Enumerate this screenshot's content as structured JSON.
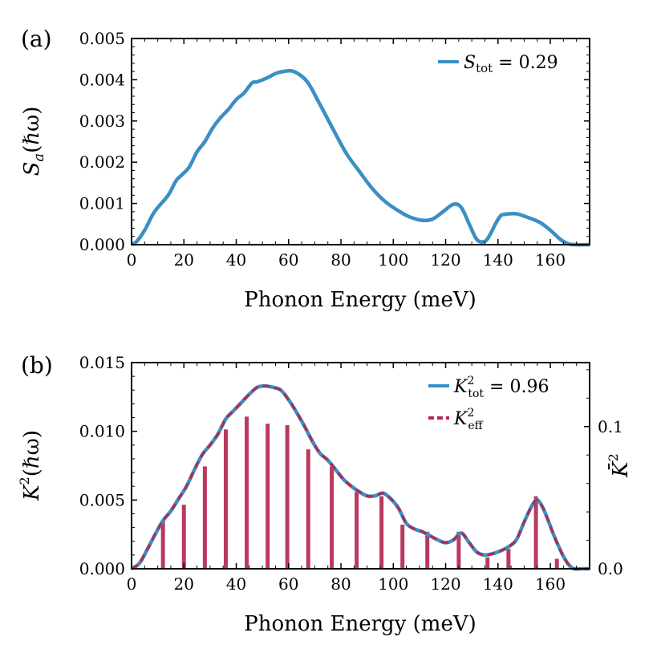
{
  "chart_data": [
    {
      "panel": "(a)",
      "type": "line",
      "xlabel": "Phonon Energy (meV)",
      "ylabel_base": "S",
      "ylabel_sub": "a",
      "ylabel_rest": "(ℏω)",
      "xlim": [
        0,
        175
      ],
      "ylim": [
        0,
        0.005
      ],
      "x_ticks": [
        0,
        20,
        40,
        60,
        80,
        100,
        120,
        140,
        160
      ],
      "y_ticks": [
        0,
        0.001,
        0.002,
        0.003,
        0.004,
        0.005
      ],
      "y_tick_labels": [
        "0.000",
        "0.001",
        "0.002",
        "0.003",
        "0.004",
        "0.005"
      ],
      "series": [
        {
          "name": "S_tot",
          "legend_base": "S",
          "legend_sub": "tot",
          "legend_rest": " = 0.29",
          "color": "#3a8fc3",
          "x": [
            0,
            2,
            5,
            8,
            10,
            14,
            17,
            19,
            22,
            25,
            28,
            31,
            34,
            37,
            40,
            43,
            46,
            48,
            52,
            55,
            58,
            62,
            67,
            72,
            77,
            82,
            87,
            92,
            97,
            102,
            106,
            111,
            115,
            119,
            123,
            126,
            129,
            132,
            135,
            137,
            139,
            141,
            143,
            147,
            151,
            156,
            160,
            164,
            167,
            170,
            175
          ],
          "y": [
            0.0,
            8e-05,
            0.00035,
            0.00072,
            0.0009,
            0.0012,
            0.00155,
            0.00168,
            0.00188,
            0.00225,
            0.0025,
            0.00283,
            0.00308,
            0.00328,
            0.00352,
            0.00368,
            0.00392,
            0.00395,
            0.00405,
            0.00415,
            0.0042,
            0.0042,
            0.00396,
            0.0034,
            0.0028,
            0.00222,
            0.00178,
            0.00136,
            0.00104,
            0.00082,
            0.00068,
            0.00059,
            0.00062,
            0.0008,
            0.00098,
            0.0009,
            0.0005,
            0.00012,
            8e-05,
            0.00025,
            0.0005,
            0.0007,
            0.00074,
            0.00075,
            0.00067,
            0.00054,
            0.00035,
            0.00012,
            2e-05,
            0.0,
            0.0
          ]
        }
      ]
    },
    {
      "panel": "(b)",
      "type": "line",
      "xlabel": "Phonon Energy (meV)",
      "ylabel_base": "K",
      "ylabel_sup": "2",
      "ylabel_rest": "(ℏω)",
      "y2label_base": "K̄",
      "y2label_sup": "2",
      "xlim": [
        0,
        175
      ],
      "ylim": [
        0,
        0.015
      ],
      "y2lim": [
        0,
        0.145
      ],
      "x_ticks": [
        0,
        20,
        40,
        60,
        80,
        100,
        120,
        140,
        160
      ],
      "y_ticks": [
        0,
        0.005,
        0.01,
        0.015
      ],
      "y_tick_labels": [
        "0.000",
        "0.005",
        "0.010",
        "0.015"
      ],
      "y2_ticks": [
        0,
        0.1
      ],
      "y2_tick_labels": [
        "0.0",
        "0.1"
      ],
      "series": [
        {
          "name": "K_tot",
          "legend_base": "K",
          "legend_sup": "2",
          "legend_sub": "tot",
          "legend_rest": " = 0.96",
          "color": "#3a8fc3",
          "style": "solid",
          "x": [
            0,
            3,
            6,
            9,
            12,
            15,
            18,
            21,
            24,
            27,
            30,
            33,
            36,
            39,
            42,
            45,
            48,
            51,
            54,
            57,
            60,
            63,
            66,
            69,
            72,
            75,
            78,
            81,
            84,
            87,
            90,
            93,
            96,
            99,
            102,
            105,
            108,
            111,
            114,
            117,
            120,
            123,
            126,
            129,
            132,
            135,
            138,
            141,
            144,
            147,
            150,
            153,
            155,
            157,
            159,
            161,
            163,
            165,
            167,
            169,
            172,
            175
          ],
          "y": [
            0.0,
            0.0004,
            0.0014,
            0.0025,
            0.0035,
            0.0042,
            0.0051,
            0.006,
            0.0072,
            0.0083,
            0.009,
            0.0098,
            0.0109,
            0.0115,
            0.0121,
            0.0127,
            0.0132,
            0.0133,
            0.0132,
            0.013,
            0.0123,
            0.0114,
            0.0104,
            0.0093,
            0.0084,
            0.0079,
            0.0072,
            0.0065,
            0.006,
            0.0056,
            0.0053,
            0.0053,
            0.0055,
            0.0051,
            0.0044,
            0.0033,
            0.0029,
            0.0027,
            0.0024,
            0.0021,
            0.0019,
            0.0021,
            0.0026,
            0.0019,
            0.0012,
            0.001,
            0.0011,
            0.0013,
            0.0016,
            0.0021,
            0.0034,
            0.0046,
            0.005,
            0.0045,
            0.0036,
            0.0026,
            0.0017,
            0.0009,
            0.0003,
            0.0,
            0.0,
            0.0
          ]
        },
        {
          "name": "K_eff",
          "legend_base": "K",
          "legend_sup": "2",
          "legend_sub": "eff",
          "legend_rest": "",
          "color": "#b5284f",
          "style": "dashed",
          "same_as": "K_tot"
        },
        {
          "name": "K_bar",
          "type": "bar",
          "axis": "y2",
          "color": "#b5284f",
          "x": [
            12,
            20,
            28,
            36,
            44,
            52,
            59.5,
            67.5,
            76.5,
            86,
            95.5,
            103.5,
            113,
            125,
            136,
            144,
            154.5,
            162.5
          ],
          "values": [
            0.034,
            0.045,
            0.072,
            0.098,
            0.107,
            0.102,
            0.101,
            0.084,
            0.072,
            0.054,
            0.051,
            0.031,
            0.026,
            0.026,
            0.008,
            0.014,
            0.051,
            0.007
          ]
        }
      ]
    }
  ]
}
